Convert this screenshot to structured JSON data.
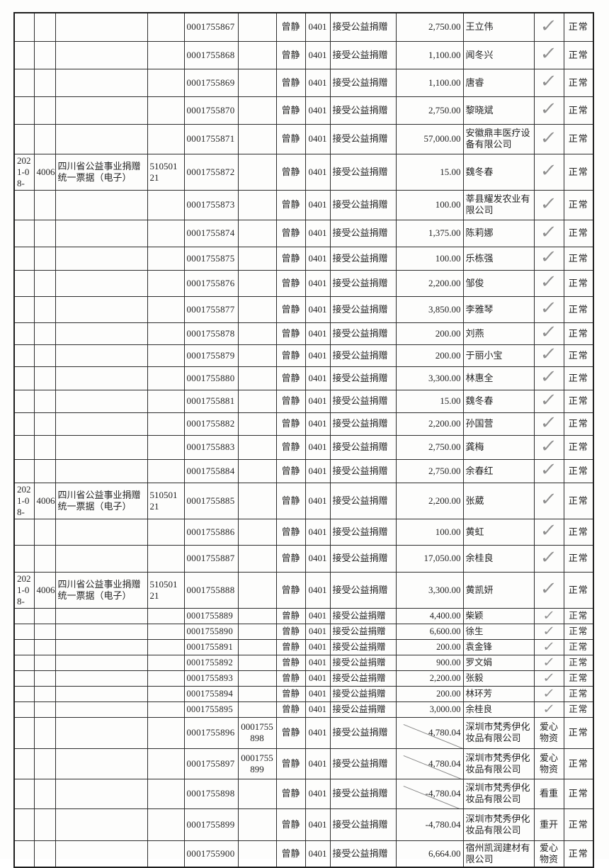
{
  "colors": {
    "paper": "#fdfdfc",
    "grid_line": "#2d2d2d",
    "text": "#232323",
    "check_mark_gray": "#8f8f8f"
  },
  "table": {
    "common": {
      "operator": "曾静",
      "biz_code": "0401",
      "biz_type": "接受公益捐赠",
      "status": "正常",
      "check_mark": "✓"
    },
    "block": {
      "date": "2021-08-",
      "type_code": "4006",
      "invoice_type": "四川省公益事业捐赠统一票据（电子）",
      "invoice_code": "51050121"
    },
    "rows": [
      {
        "no": "0001755867",
        "no2": "",
        "amount": "2,750.00",
        "payer": "王立伟",
        "mark": "check",
        "block": false,
        "slash": false
      },
      {
        "no": "0001755868",
        "no2": "",
        "amount": "1,100.00",
        "payer": "闻冬兴",
        "mark": "check",
        "block": false,
        "slash": false
      },
      {
        "no": "0001755869",
        "no2": "",
        "amount": "1,100.00",
        "payer": "唐睿",
        "mark": "check",
        "block": false,
        "slash": false
      },
      {
        "no": "0001755870",
        "no2": "",
        "amount": "2,750.00",
        "payer": "黎晓斌",
        "mark": "check",
        "block": false,
        "slash": false
      },
      {
        "no": "0001755871",
        "no2": "",
        "amount": "57,000.00",
        "payer": "安徽鼎丰医疗设备有限公司",
        "mark": "check",
        "block": false,
        "slash": false
      },
      {
        "no": "0001755872",
        "no2": "",
        "amount": "15.00",
        "payer": "魏冬春",
        "mark": "check",
        "block": true,
        "slash": false
      },
      {
        "no": "0001755873",
        "no2": "",
        "amount": "100.00",
        "payer": "莘县耀发农业有限公司",
        "mark": "check",
        "block": false,
        "slash": false
      },
      {
        "no": "0001755874",
        "no2": "",
        "amount": "1,375.00",
        "payer": "陈莉娜",
        "mark": "check",
        "block": false,
        "slash": false
      },
      {
        "no": "0001755875",
        "no2": "",
        "amount": "100.00",
        "payer": "乐栋强",
        "mark": "check",
        "block": false,
        "slash": false
      },
      {
        "no": "0001755876",
        "no2": "",
        "amount": "2,200.00",
        "payer": "邹俊",
        "mark": "check",
        "block": false,
        "slash": false
      },
      {
        "no": "0001755877",
        "no2": "",
        "amount": "3,850.00",
        "payer": "李雅琴",
        "mark": "check",
        "block": false,
        "slash": false
      },
      {
        "no": "0001755878",
        "no2": "",
        "amount": "200.00",
        "payer": "刘燕",
        "mark": "check",
        "block": false,
        "slash": false
      },
      {
        "no": "0001755879",
        "no2": "",
        "amount": "200.00",
        "payer": "于丽小宝",
        "mark": "check",
        "block": false,
        "slash": false
      },
      {
        "no": "0001755880",
        "no2": "",
        "amount": "3,300.00",
        "payer": "林惠全",
        "mark": "check",
        "block": false,
        "slash": false
      },
      {
        "no": "0001755881",
        "no2": "",
        "amount": "15.00",
        "payer": "魏冬春",
        "mark": "check",
        "block": false,
        "slash": false
      },
      {
        "no": "0001755882",
        "no2": "",
        "amount": "2,200.00",
        "payer": "孙国营",
        "mark": "check",
        "block": false,
        "slash": false
      },
      {
        "no": "0001755883",
        "no2": "",
        "amount": "2,750.00",
        "payer": "龚梅",
        "mark": "check",
        "block": false,
        "slash": false
      },
      {
        "no": "0001755884",
        "no2": "",
        "amount": "2,750.00",
        "payer": "余春红",
        "mark": "check",
        "block": false,
        "slash": false
      },
      {
        "no": "0001755885",
        "no2": "",
        "amount": "2,200.00",
        "payer": "张葳",
        "mark": "check",
        "block": true,
        "slash": false
      },
      {
        "no": "0001755886",
        "no2": "",
        "amount": "100.00",
        "payer": "黄虹",
        "mark": "check",
        "block": false,
        "slash": false
      },
      {
        "no": "0001755887",
        "no2": "",
        "amount": "17,050.00",
        "payer": "余桂良",
        "mark": "check",
        "block": false,
        "slash": false
      },
      {
        "no": "0001755888",
        "no2": "",
        "amount": "3,300.00",
        "payer": "黄凯妍",
        "mark": "check",
        "block": true,
        "slash": false
      },
      {
        "no": "0001755889",
        "no2": "",
        "amount": "4,400.00",
        "payer": "柴颖",
        "mark": "check",
        "block": false,
        "slash": false
      },
      {
        "no": "0001755890",
        "no2": "",
        "amount": "6,600.00",
        "payer": "徐生",
        "mark": "check",
        "block": false,
        "slash": false
      },
      {
        "no": "0001755891",
        "no2": "",
        "amount": "200.00",
        "payer": "袁金锋",
        "mark": "check",
        "block": false,
        "slash": false
      },
      {
        "no": "0001755892",
        "no2": "",
        "amount": "900.00",
        "payer": "罗文娟",
        "mark": "check",
        "block": false,
        "slash": false
      },
      {
        "no": "0001755893",
        "no2": "",
        "amount": "2,200.00",
        "payer": "张毅",
        "mark": "check",
        "block": false,
        "slash": false
      },
      {
        "no": "0001755894",
        "no2": "",
        "amount": "200.00",
        "payer": "林环芳",
        "mark": "check",
        "block": false,
        "slash": false
      },
      {
        "no": "0001755895",
        "no2": "",
        "amount": "3,000.00",
        "payer": "余桂良",
        "mark": "check",
        "block": false,
        "slash": false
      },
      {
        "no": "0001755896",
        "no2": "0001755898",
        "amount": "4,780.04",
        "payer": "深圳市梵秀伊化妆品有限公司",
        "mark": "爱心物资",
        "block": false,
        "slash": true
      },
      {
        "no": "0001755897",
        "no2": "0001755899",
        "amount": "4,780.04",
        "payer": "深圳市梵秀伊化妆品有限公司",
        "mark": "爱心物资",
        "block": false,
        "slash": true
      },
      {
        "no": "0001755898",
        "no2": "",
        "amount": "-4,780.04",
        "payer": "深圳市梵秀伊化妆品有限公司",
        "mark": "看重",
        "block": false,
        "slash": true
      },
      {
        "no": "0001755899",
        "no2": "",
        "amount": "-4,780.04",
        "payer": "深圳市梵秀伊化妆品有限公司",
        "mark": "重开",
        "block": false,
        "slash": false
      },
      {
        "no": "0001755900",
        "no2": "",
        "amount": "6,664.00",
        "payer": "宿州凯润建材有限公司",
        "mark": "爱心物资",
        "block": false,
        "slash": false
      }
    ]
  }
}
